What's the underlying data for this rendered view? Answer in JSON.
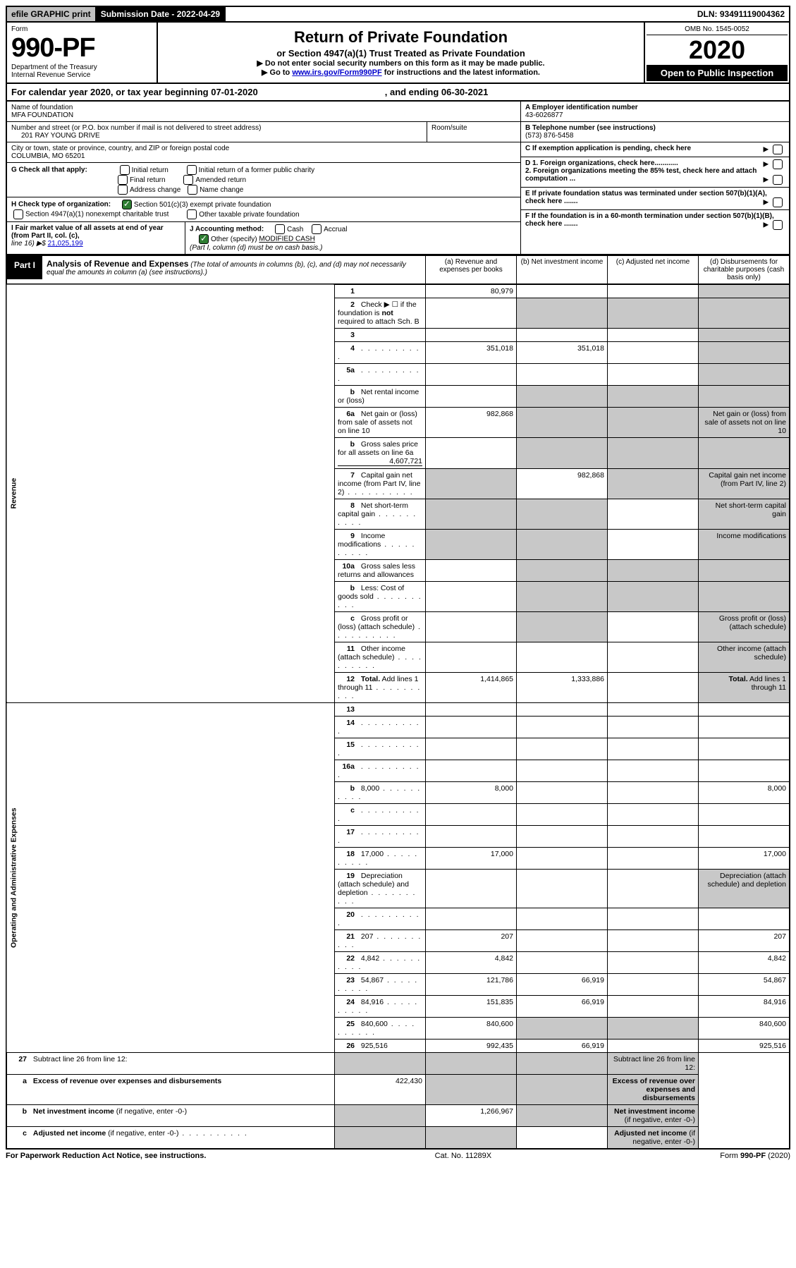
{
  "topbar": {
    "efile": "efile GRAPHIC print",
    "submission": "Submission Date - 2022-04-29",
    "dln": "DLN: 93491119004362"
  },
  "header": {
    "form_label": "Form",
    "form_number": "990-PF",
    "dept1": "Department of the Treasury",
    "dept2": "Internal Revenue Service",
    "title": "Return of Private Foundation",
    "subtitle": "or Section 4947(a)(1) Trust Treated as Private Foundation",
    "note1": "▶ Do not enter social security numbers on this form as it may be made public.",
    "note2_pre": "▶ Go to ",
    "note2_link": "www.irs.gov/Form990PF",
    "note2_post": " for instructions and the latest information.",
    "omb": "OMB No. 1545-0052",
    "year": "2020",
    "open": "Open to Public Inspection"
  },
  "calyear": {
    "text": "For calendar year 2020, or tax year beginning 07-01-2020",
    "ending": ", and ending 06-30-2021"
  },
  "entity": {
    "name_label": "Name of foundation",
    "name": "MFA FOUNDATION",
    "addr_label": "Number and street (or P.O. box number if mail is not delivered to street address)",
    "addr": "201 RAY YOUNG DRIVE",
    "room_label": "Room/suite",
    "city_label": "City or town, state or province, country, and ZIP or foreign postal code",
    "city": "COLUMBIA, MO  65201",
    "a_label": "A Employer identification number",
    "a_val": "43-6026877",
    "b_label": "B Telephone number (see instructions)",
    "b_val": "(573) 876-5458",
    "c_label": "C If exemption application is pending, check here",
    "g_label": "G Check all that apply:",
    "g_opts": [
      "Initial return",
      "Initial return of a former public charity",
      "Final return",
      "Amended return",
      "Address change",
      "Name change"
    ],
    "d1": "D 1. Foreign organizations, check here............",
    "d2": "2. Foreign organizations meeting the 85% test, check here and attach computation ...",
    "h_label": "H Check type of organization:",
    "h1": "Section 501(c)(3) exempt private foundation",
    "h2": "Section 4947(a)(1) nonexempt charitable trust",
    "h3": "Other taxable private foundation",
    "e_label": "E If private foundation status was terminated under section 507(b)(1)(A), check here .......",
    "i_label": "I Fair market value of all assets at end of year (from Part II, col. (c),",
    "i_line": "line 16) ▶$  ",
    "i_val": "21,025,199",
    "j_label": "J Accounting method:",
    "j_cash": "Cash",
    "j_accrual": "Accrual",
    "j_other": "Other (specify)",
    "j_other_val": "MODIFIED CASH",
    "j_note": "(Part I, column (d) must be on cash basis.)",
    "f_label": "F If the foundation is in a 60-month termination under section 507(b)(1)(B), check here ......."
  },
  "part1": {
    "label": "Part I",
    "title": "Analysis of Revenue and Expenses",
    "note": " (The total of amounts in columns (b), (c), and (d) may not necessarily equal the amounts in column (a) (see instructions).)",
    "cols": {
      "a": "(a)   Revenue and expenses per books",
      "b": "(b)   Net investment income",
      "c": "(c)   Adjusted net income",
      "d": "(d)   Disbursements for charitable purposes (cash basis only)"
    }
  },
  "sections": {
    "revenue": "Revenue",
    "expenses": "Operating and Administrative Expenses"
  },
  "rows": [
    {
      "n": "1",
      "d": "",
      "a": "80,979",
      "b": "",
      "c": "",
      "shade_d": true
    },
    {
      "n": "2",
      "d": "Check ▶ ☐ if the foundation is <b>not</b> required to attach Sch. B",
      "span": true
    },
    {
      "n": "3",
      "d": "",
      "a": "",
      "b": "",
      "c": "",
      "shade_d": true
    },
    {
      "n": "4",
      "d": "",
      "dots": true,
      "a": "351,018",
      "b": "351,018",
      "c": "",
      "shade_d": true
    },
    {
      "n": "5a",
      "d": "",
      "dots": true,
      "a": "",
      "b": "",
      "c": "",
      "shade_d": true
    },
    {
      "n": "b",
      "d": "Net rental income or (loss)",
      "inset": true,
      "span": true
    },
    {
      "n": "6a",
      "d": "Net gain or (loss) from sale of assets not on line 10",
      "a": "982,868",
      "shade_bcd": true
    },
    {
      "n": "b",
      "d": "Gross sales price for all assets on line 6a",
      "inset_val": "4,607,721",
      "span": true
    },
    {
      "n": "7",
      "d": "Capital gain net income (from Part IV, line 2)",
      "dots": true,
      "shade_a": true,
      "b": "982,868",
      "shade_cd": true
    },
    {
      "n": "8",
      "d": "Net short-term capital gain",
      "dots": true,
      "shade_ab": true,
      "c": "",
      "shade_d": true
    },
    {
      "n": "9",
      "d": "Income modifications",
      "dots": true,
      "shade_ab": true,
      "c": "",
      "shade_d": true
    },
    {
      "n": "10a",
      "d": "Gross sales less returns and allowances",
      "inset": true,
      "span": true
    },
    {
      "n": "b",
      "d": "Less: Cost of goods sold",
      "dots": true,
      "inset": true,
      "span": true
    },
    {
      "n": "c",
      "d": "Gross profit or (loss) (attach schedule)",
      "dots": true,
      "a": "",
      "shade_b": true,
      "c": "",
      "shade_d": true
    },
    {
      "n": "11",
      "d": "Other income (attach schedule)",
      "dots": true,
      "a": "",
      "b": "",
      "c": "",
      "shade_d": true
    },
    {
      "n": "12",
      "d": "<b>Total.</b> Add lines 1 through 11",
      "dots": true,
      "a": "1,414,865",
      "b": "1,333,886",
      "c": "",
      "shade_d": true
    }
  ],
  "exp_rows": [
    {
      "n": "13",
      "d": "",
      "a": "",
      "b": "",
      "c": ""
    },
    {
      "n": "14",
      "d": "",
      "dots": true,
      "a": "",
      "b": "",
      "c": ""
    },
    {
      "n": "15",
      "d": "",
      "dots": true,
      "a": "",
      "b": "",
      "c": ""
    },
    {
      "n": "16a",
      "d": "",
      "dots": true,
      "a": "",
      "b": "",
      "c": ""
    },
    {
      "n": "b",
      "d": "8,000",
      "dots": true,
      "a": "8,000",
      "b": "",
      "c": ""
    },
    {
      "n": "c",
      "d": "",
      "dots": true,
      "a": "",
      "b": "",
      "c": ""
    },
    {
      "n": "17",
      "d": "",
      "dots": true,
      "a": "",
      "b": "",
      "c": ""
    },
    {
      "n": "18",
      "d": "17,000",
      "dots": true,
      "a": "17,000",
      "b": "",
      "c": ""
    },
    {
      "n": "19",
      "d": "Depreciation (attach schedule) and depletion",
      "dots": true,
      "a": "",
      "b": "",
      "c": "",
      "shade_d": true
    },
    {
      "n": "20",
      "d": "",
      "dots": true,
      "a": "",
      "b": "",
      "c": ""
    },
    {
      "n": "21",
      "d": "207",
      "dots": true,
      "a": "207",
      "b": "",
      "c": ""
    },
    {
      "n": "22",
      "d": "4,842",
      "dots": true,
      "a": "4,842",
      "b": "",
      "c": ""
    },
    {
      "n": "23",
      "d": "54,867",
      "dots": true,
      "a": "121,786",
      "b": "66,919",
      "c": ""
    },
    {
      "n": "24",
      "d": "84,916",
      "dots": true,
      "a": "151,835",
      "b": "66,919",
      "c": ""
    },
    {
      "n": "25",
      "d": "840,600",
      "dots": true,
      "a": "840,600",
      "shade_bc": true
    },
    {
      "n": "26",
      "d": "925,516",
      "a": "992,435",
      "b": "66,919",
      "c": ""
    }
  ],
  "final_rows": [
    {
      "n": "27",
      "d": "Subtract line 26 from line 12:",
      "shade_all": true
    },
    {
      "n": "a",
      "d": "<b>Excess of revenue over expenses and disbursements</b>",
      "a": "422,430",
      "shade_bcd": true
    },
    {
      "n": "b",
      "d": "<b>Net investment income</b> (if negative, enter -0-)",
      "shade_a": true,
      "b": "1,266,967",
      "shade_cd": true
    },
    {
      "n": "c",
      "d": "<b>Adjusted net income</b> (if negative, enter -0-)",
      "dots": true,
      "shade_ab": true,
      "c": "",
      "shade_d": true
    }
  ],
  "footer": {
    "left": "For Paperwork Reduction Act Notice, see instructions.",
    "mid": "Cat. No. 11289X",
    "right": "Form 990-PF (2020)"
  }
}
